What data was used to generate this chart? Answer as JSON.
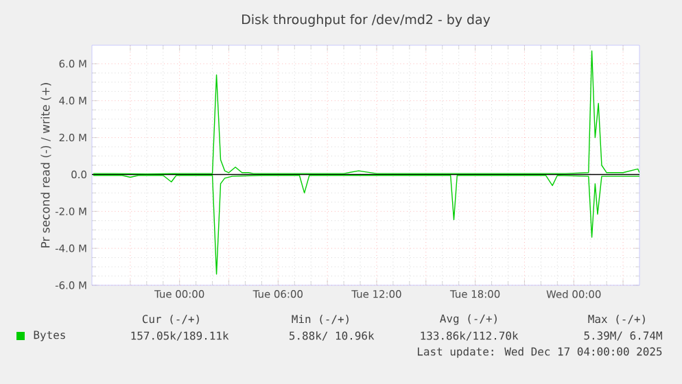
{
  "chart_data": {
    "type": "line",
    "title": "Disk throughput for /dev/md2 - by day",
    "ylabel": "Pr second read (-) / write (+)",
    "xlim": [
      "2025-12-15T18:40",
      "2025-12-17T04:00"
    ],
    "ylim": [
      -6,
      7
    ],
    "xticks": [
      {
        "value": "2025-12-15T21:00",
        "label": null
      },
      {
        "value": "2025-12-16T00:00",
        "label": "Tue 00:00"
      },
      {
        "value": "2025-12-16T03:00",
        "label": null
      },
      {
        "value": "2025-12-16T06:00",
        "label": "Tue 06:00"
      },
      {
        "value": "2025-12-16T09:00",
        "label": null
      },
      {
        "value": "2025-12-16T12:00",
        "label": "Tue 12:00"
      },
      {
        "value": "2025-12-16T15:00",
        "label": null
      },
      {
        "value": "2025-12-16T18:00",
        "label": "Tue 18:00"
      },
      {
        "value": "2025-12-16T21:00",
        "label": null
      },
      {
        "value": "2025-12-17T00:00",
        "label": "Wed 00:00"
      },
      {
        "value": "2025-12-17T03:00",
        "label": null
      }
    ],
    "yticks": [
      {
        "value": -6,
        "label": "-6.0 M"
      },
      {
        "value": -4,
        "label": "-4.0 M"
      },
      {
        "value": -2,
        "label": "-2.0 M"
      },
      {
        "value": 0,
        "label": "0.0"
      },
      {
        "value": 2,
        "label": "2.0 M"
      },
      {
        "value": 4,
        "label": "4.0 M"
      },
      {
        "value": 6,
        "label": "6.0 M"
      }
    ],
    "grid": true,
    "legend": "bottom left",
    "ref_lines": [
      {
        "axis": "y",
        "value": 0,
        "color": "#000000"
      }
    ],
    "series": [
      {
        "name": "Bytes",
        "color": "#00cc00",
        "x": [
          "2025-12-15T18:45",
          "2025-12-15T20:00",
          "2025-12-15T22:00",
          "2025-12-16T00:00",
          "2025-12-16T01:30",
          "2025-12-16T02:00",
          "2025-12-16T02:15",
          "2025-12-16T02:30",
          "2025-12-16T02:45",
          "2025-12-16T03:00",
          "2025-12-16T03:24",
          "2025-12-16T03:48",
          "2025-12-16T04:12",
          "2025-12-16T04:30",
          "2025-12-16T06:00",
          "2025-12-16T08:00",
          "2025-12-16T10:00",
          "2025-12-16T10:54",
          "2025-12-16T12:00",
          "2025-12-16T14:00",
          "2025-12-16T16:00",
          "2025-12-16T18:00",
          "2025-12-16T20:00",
          "2025-12-16T22:00",
          "2025-12-16T23:30",
          "2025-12-17T00:54",
          "2025-12-17T01:06",
          "2025-12-17T01:18",
          "2025-12-17T01:30",
          "2025-12-17T01:42",
          "2025-12-17T02:00",
          "2025-12-17T03:00",
          "2025-12-17T03:54",
          "2025-12-17T04:00"
        ],
        "values": [
          0.05,
          0.05,
          0.03,
          0.05,
          0.05,
          0.05,
          5.4,
          0.8,
          0.2,
          0.1,
          0.4,
          0.1,
          0.1,
          0.05,
          0.05,
          0.05,
          0.05,
          0.2,
          0.05,
          0.05,
          0.05,
          0.05,
          0.05,
          0.05,
          0.05,
          0.1,
          6.7,
          2.0,
          3.85,
          0.5,
          0.1,
          0.1,
          0.3,
          0.1
        ]
      },
      {
        "color": "#00cc00",
        "x": [
          "2025-12-15T18:45",
          "2025-12-15T20:30",
          "2025-12-15T21:00",
          "2025-12-15T21:30",
          "2025-12-15T23:00",
          "2025-12-15T23:30",
          "2025-12-15T23:48",
          "2025-12-16T02:00",
          "2025-12-16T02:15",
          "2025-12-16T02:30",
          "2025-12-16T02:45",
          "2025-12-16T03:12",
          "2025-12-16T05:00",
          "2025-12-16T07:18",
          "2025-12-16T07:36",
          "2025-12-16T07:54",
          "2025-12-16T12:00",
          "2025-12-16T16:30",
          "2025-12-16T16:42",
          "2025-12-16T16:54",
          "2025-12-16T21:00",
          "2025-12-16T22:18",
          "2025-12-16T22:42",
          "2025-12-16T23:00",
          "2025-12-17T00:54",
          "2025-12-17T01:06",
          "2025-12-17T01:18",
          "2025-12-17T01:27",
          "2025-12-17T01:42",
          "2025-12-17T04:00"
        ],
        "values": [
          -0.05,
          -0.05,
          -0.15,
          -0.05,
          -0.05,
          -0.4,
          -0.05,
          -0.05,
          -5.4,
          -0.5,
          -0.2,
          -0.1,
          -0.05,
          -0.05,
          -1.0,
          -0.05,
          -0.05,
          -0.05,
          -2.45,
          -0.05,
          -0.05,
          -0.05,
          -0.6,
          -0.05,
          -0.1,
          -3.4,
          -0.5,
          -2.15,
          -0.1,
          -0.1
        ]
      }
    ],
    "annotations": [
      "Cur (-/+)",
      "Min (-/+)",
      "Avg (-/+)",
      "Max (-/+)",
      "157.05k/189.11k",
      "5.88k/ 10.96k",
      "133.86k/112.70k",
      "5.39M/  6.74M",
      "Last update: Wed Dec 17 04:00:00 2025"
    ]
  }
}
